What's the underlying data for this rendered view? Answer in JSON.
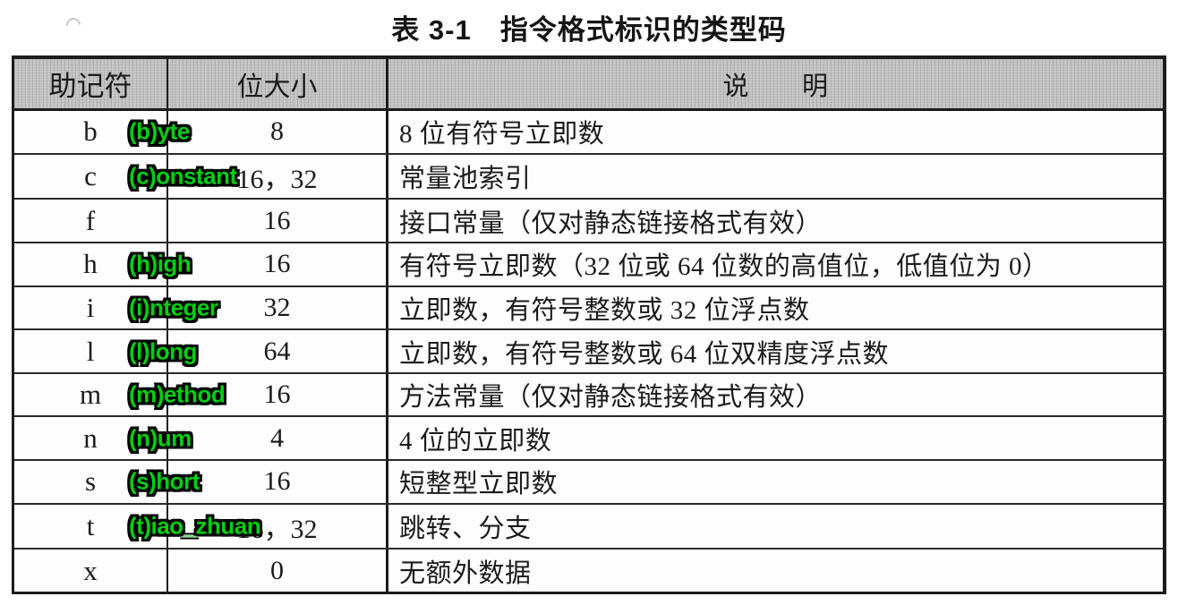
{
  "page": {
    "title": "表 3-1　指令格式标识的类型码"
  },
  "table": {
    "annotation_color": "#00cf12",
    "headers": {
      "mnemonic": "助记符",
      "bits": "位大小",
      "description": "说　　明"
    },
    "rows": [
      {
        "mnemonic": "b",
        "bits": "8",
        "desc": "8 位有符号立即数",
        "annotation": "(b)yte"
      },
      {
        "mnemonic": "c",
        "bits": "16，32",
        "desc": "常量池索引",
        "annotation": "(c)onstant"
      },
      {
        "mnemonic": "f",
        "bits": "16",
        "desc": "接口常量（仅对静态链接格式有效）",
        "annotation": ""
      },
      {
        "mnemonic": "h",
        "bits": "16",
        "desc": "有符号立即数（32 位或 64 位数的高值位，低值位为 0）",
        "annotation": "(h)igh"
      },
      {
        "mnemonic": "i",
        "bits": "32",
        "desc": "立即数，有符号整数或 32 位浮点数",
        "annotation": "(i)nteger"
      },
      {
        "mnemonic": "l",
        "bits": "64",
        "desc": "立即数，有符号整数或 64 位双精度浮点数",
        "annotation": "(l)long"
      },
      {
        "mnemonic": "m",
        "bits": "16",
        "desc": "方法常量（仅对静态链接格式有效）",
        "annotation": "(m)ethod"
      },
      {
        "mnemonic": "n",
        "bits": "4",
        "desc": "4 位的立即数",
        "annotation": "(n)um"
      },
      {
        "mnemonic": "s",
        "bits": "16",
        "desc": "短整型立即数",
        "annotation": "(s)hort"
      },
      {
        "mnemonic": "t",
        "bits": "16，32",
        "desc": "跳转、分支",
        "annotation": "(t)iao_zhuan"
      },
      {
        "mnemonic": "x",
        "bits": "0",
        "desc": "无额外数据",
        "annotation": ""
      }
    ]
  }
}
